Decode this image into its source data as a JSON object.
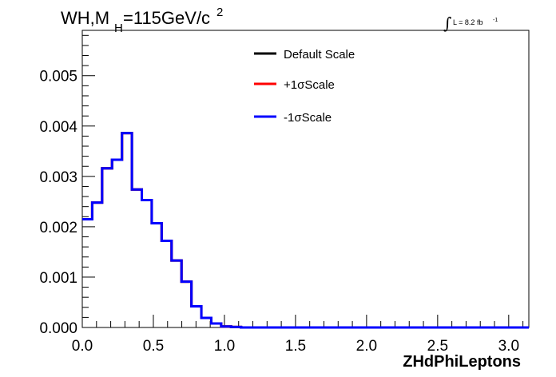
{
  "chart_data": {
    "type": "histogram-step",
    "title_main": "WH,M",
    "title_sub": "H",
    "title_rest": "=115GeV/c",
    "title_sup": "2",
    "lumi_integral": "∫",
    "lumi_text": "L = 8.2 fb",
    "lumi_sup": "-1",
    "xlabel": "ZHdPhiLeptons",
    "ylabel": "",
    "xlim": [
      0.0,
      3.14159
    ],
    "ylim": [
      0.0,
      0.0059
    ],
    "bin_width": 0.0698,
    "x_ticks": [
      "0.0",
      "0.5",
      "1.0",
      "1.5",
      "2.0",
      "2.5",
      "3.0"
    ],
    "x_tick_values": [
      0.0,
      0.5,
      1.0,
      1.5,
      2.0,
      2.5,
      3.0
    ],
    "y_ticks": [
      "0.000",
      "0.001",
      "0.002",
      "0.003",
      "0.004",
      "0.005"
    ],
    "y_tick_values": [
      0.0,
      0.001,
      0.002,
      0.003,
      0.004,
      0.005
    ],
    "grid": false,
    "legend_position": "top-center",
    "series": [
      {
        "name": "Default Scale",
        "color": "#000000",
        "values": [
          0.00215,
          0.00248,
          0.00316,
          0.00333,
          0.00386,
          0.00274,
          0.00253,
          0.00207,
          0.00172,
          0.00133,
          0.00091,
          0.00042,
          0.00019,
          8e-05,
          2e-05,
          1e-05,
          0,
          0,
          0,
          0,
          0,
          0,
          0,
          0,
          0,
          0,
          0,
          0,
          0,
          0,
          0,
          0,
          0,
          0,
          0,
          0,
          0,
          0,
          0,
          0,
          0,
          0,
          0,
          0,
          0
        ]
      },
      {
        "name": "+1σScale",
        "color": "#ff0000",
        "values": [
          0.00215,
          0.00248,
          0.00316,
          0.00333,
          0.00386,
          0.00274,
          0.00253,
          0.00207,
          0.00172,
          0.00133,
          0.00091,
          0.00042,
          0.00019,
          8e-05,
          2e-05,
          1e-05,
          0,
          0,
          0,
          0,
          0,
          0,
          0,
          0,
          0,
          0,
          0,
          0,
          0,
          0,
          0,
          0,
          0,
          0,
          0,
          0,
          0,
          0,
          0,
          0,
          0,
          0,
          0,
          0,
          0
        ]
      },
      {
        "name": "-1σScale",
        "color": "#0000ff",
        "values": [
          0.00215,
          0.00248,
          0.00316,
          0.00333,
          0.00386,
          0.00274,
          0.00253,
          0.00207,
          0.00172,
          0.00133,
          0.00091,
          0.00042,
          0.00019,
          8e-05,
          2e-05,
          1e-05,
          0,
          0,
          0,
          0,
          0,
          0,
          0,
          0,
          0,
          0,
          0,
          0,
          0,
          0,
          0,
          0,
          0,
          0,
          0,
          0,
          0,
          0,
          0,
          0,
          0,
          0,
          0,
          0,
          0
        ]
      }
    ]
  }
}
